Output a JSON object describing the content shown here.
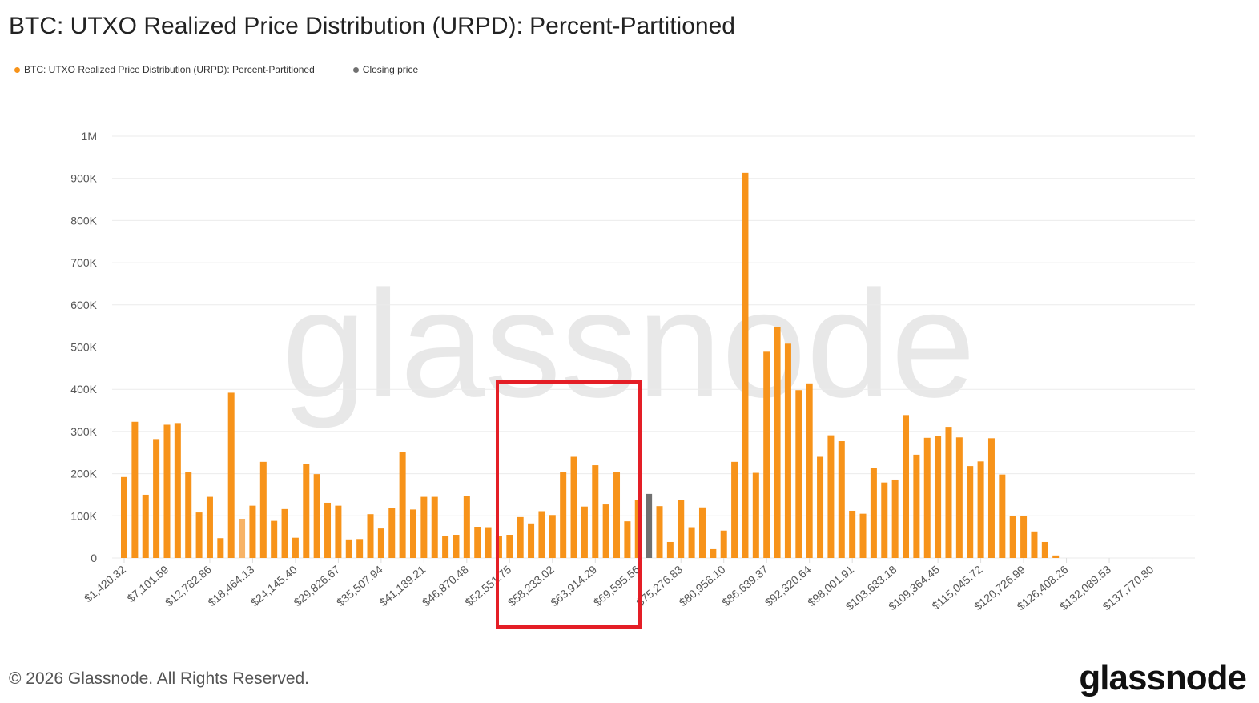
{
  "title": "BTC: UTXO Realized Price Distribution (URPD): Percent-Partitioned",
  "legend": [
    {
      "label": "BTC: UTXO Realized Price Distribution (URPD): Percent-Partitioned",
      "color": "#f7931a"
    },
    {
      "label": "Closing price",
      "color": "#707070"
    }
  ],
  "watermark": "glassnode",
  "footer": "© 2026 Glassnode. All Rights Reserved.",
  "logo": "glassnode",
  "highlight_color": "#e41e26",
  "chart_data": {
    "type": "bar",
    "bin_width": 1420.32,
    "ylim": [
      0,
      1000000
    ],
    "yticks": [
      0,
      100000,
      200000,
      300000,
      400000,
      500000,
      600000,
      700000,
      800000,
      900000,
      1000000
    ],
    "ytick_labels": [
      "0",
      "100K",
      "200K",
      "300K",
      "400K",
      "500K",
      "600K",
      "700K",
      "800K",
      "900K",
      "1M"
    ],
    "xtick_labels": [
      "$1,420.32",
      "$7,101.59",
      "$12,782.86",
      "$18,464.13",
      "$24,145.40",
      "$29,826.67",
      "$35,507.94",
      "$41,189.21",
      "$46,870.48",
      "$52,551.75",
      "$58,233.02",
      "$63,914.29",
      "$69,595.56",
      "$75,276.83",
      "$80,958.10",
      "$86,639.37",
      "$92,320.64",
      "$98,001.91",
      "$103,683.18",
      "$109,364.45",
      "$115,045.72",
      "$120,726.99",
      "$126,408.26",
      "$132,089.53",
      "$137,770.80"
    ],
    "grid": true,
    "legend_position": "top-left",
    "closing_price_bin": 50,
    "highlighted_bin": 12,
    "highlight_range": [
      "$52,551.75",
      "$69,595.56"
    ],
    "values": [
      192000,
      323000,
      150000,
      282000,
      316000,
      320000,
      203000,
      108000,
      145000,
      47000,
      392000,
      93000,
      124000,
      228000,
      88000,
      116000,
      48000,
      222000,
      199000,
      131000,
      124000,
      44000,
      45000,
      104000,
      70000,
      119000,
      251000,
      115000,
      145000,
      145000,
      52000,
      55000,
      148000,
      74000,
      73000,
      53000,
      55000,
      97000,
      82000,
      111000,
      102000,
      203000,
      240000,
      122000,
      220000,
      127000,
      203000,
      87000,
      138000,
      152000,
      123000,
      38000,
      137000,
      73000,
      120000,
      21000,
      65000,
      228000,
      913000,
      202000,
      489000,
      548000,
      508000,
      398000,
      414000,
      240000,
      291000,
      277000,
      112000,
      105000,
      213000,
      179000,
      186000,
      339000,
      245000,
      285000,
      290000,
      311000,
      286000,
      218000,
      229000,
      284000,
      198000,
      100000,
      100000,
      63000,
      38000,
      6000,
      0,
      0,
      0,
      0,
      0,
      0,
      0,
      0,
      0,
      0,
      0,
      0
    ]
  }
}
